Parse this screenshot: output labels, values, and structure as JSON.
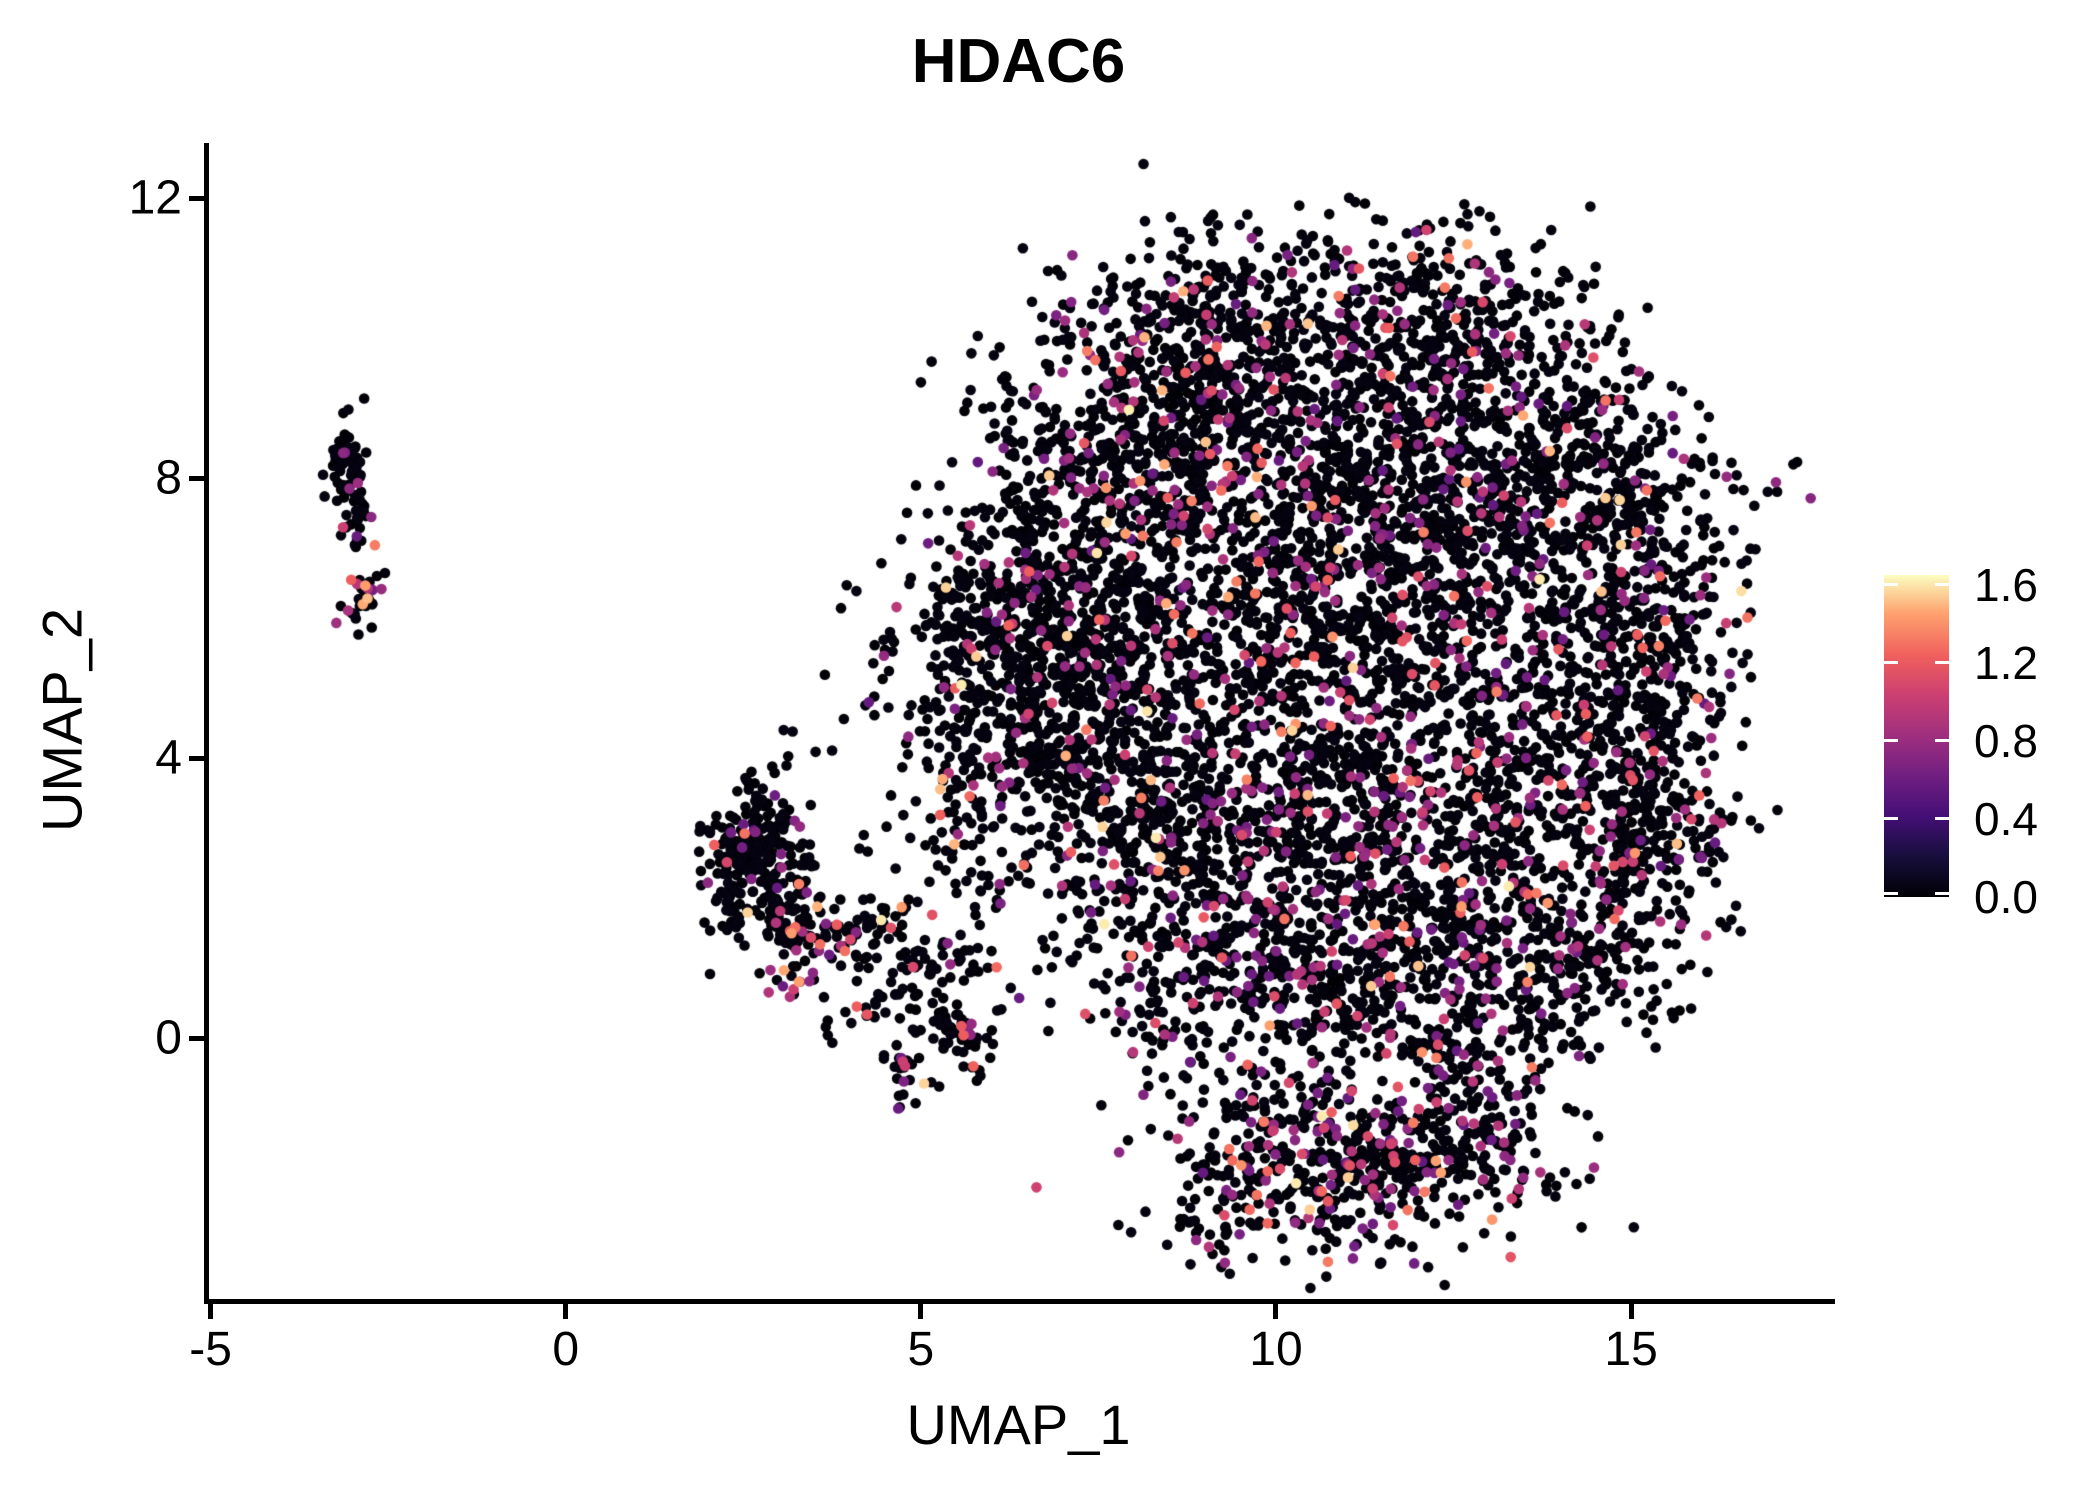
{
  "chart_data": {
    "type": "scatter",
    "title": "HDAC6",
    "xlabel": "UMAP_1",
    "ylabel": "UMAP_2",
    "xlim": [
      -5.05,
      17.8
    ],
    "ylim": [
      -3.77,
      12.79
    ],
    "x_ticks": [
      -5,
      0,
      5,
      10,
      15
    ],
    "x_tick_labels": [
      "-5",
      "0",
      "5",
      "10",
      "15"
    ],
    "y_ticks": [
      12,
      8,
      4,
      0
    ],
    "y_tick_labels": [
      "12",
      "8",
      "4",
      "0"
    ],
    "grid": false,
    "background": "#ffffff",
    "axis_color": "#000000",
    "point_radius_px": 5.3,
    "seed": 7,
    "clump": {
      "prob": 0.35,
      "scale": 0.3
    },
    "expression": {
      "zero_max": 0.05,
      "mid_range": [
        0.55,
        0.95
      ],
      "high_range": [
        1.0,
        1.35
      ],
      "top_range": [
        1.4,
        1.62
      ],
      "mix": {
        "mid": 0.68,
        "high": 0.25,
        "top": 0.07
      }
    },
    "legend": {
      "position": "right",
      "vmin": 0.0,
      "vmax": 1.65,
      "tick_values": [
        1.6,
        1.2,
        0.8,
        0.4,
        0.0
      ],
      "tick_labels": [
        "1.6",
        "1.2",
        "0.8",
        "0.4",
        "0.0"
      ],
      "colormap": "magma",
      "stops": [
        {
          "t": 0.0,
          "c": "#000004"
        },
        {
          "t": 0.13,
          "c": "#180f3e"
        },
        {
          "t": 0.25,
          "c": "#440f76"
        },
        {
          "t": 0.38,
          "c": "#721f81"
        },
        {
          "t": 0.5,
          "c": "#9f2f7f"
        },
        {
          "t": 0.63,
          "c": "#cd4071"
        },
        {
          "t": 0.75,
          "c": "#f0605d"
        },
        {
          "t": 0.88,
          "c": "#fea16e"
        },
        {
          "t": 1.0,
          "c": "#fcfdbf"
        }
      ]
    },
    "clusters": [
      {
        "name": "main-blob",
        "components": [
          [
            9.0,
            10.2,
            1.0,
            0.7,
            260,
            0.1
          ],
          [
            11.4,
            10.5,
            1.2,
            0.65,
            300,
            0.1
          ],
          [
            13.5,
            9.4,
            0.85,
            0.8,
            230,
            0.1
          ],
          [
            7.6,
            8.4,
            0.85,
            0.95,
            330,
            0.12
          ],
          [
            9.6,
            8.7,
            1.0,
            0.95,
            380,
            0.13
          ],
          [
            11.4,
            8.3,
            1.15,
            1.0,
            380,
            0.12
          ],
          [
            13.3,
            8.0,
            1.0,
            1.0,
            330,
            0.12
          ],
          [
            15.0,
            7.5,
            0.8,
            0.9,
            260,
            0.12
          ],
          [
            5.9,
            5.4,
            0.65,
            1.0,
            200,
            0.09
          ],
          [
            6.6,
            6.1,
            0.75,
            1.0,
            380,
            0.1
          ],
          [
            8.6,
            6.2,
            1.0,
            1.15,
            420,
            0.13
          ],
          [
            10.7,
            5.9,
            1.1,
            1.15,
            420,
            0.13
          ],
          [
            12.9,
            6.0,
            1.1,
            1.1,
            400,
            0.13
          ],
          [
            15.1,
            5.2,
            0.75,
            1.1,
            300,
            0.13
          ],
          [
            6.5,
            3.9,
            0.7,
            1.0,
            160,
            0.1
          ],
          [
            7.6,
            3.7,
            0.9,
            1.0,
            330,
            0.12
          ],
          [
            9.7,
            3.3,
            1.05,
            1.05,
            380,
            0.13
          ],
          [
            11.9,
            3.2,
            1.05,
            1.05,
            380,
            0.13
          ],
          [
            13.9,
            3.3,
            0.95,
            0.95,
            330,
            0.12
          ],
          [
            15.4,
            3.0,
            0.6,
            0.8,
            160,
            0.12
          ],
          [
            8.9,
            1.3,
            0.95,
            0.85,
            300,
            0.14
          ],
          [
            10.9,
            0.9,
            1.1,
            0.85,
            340,
            0.15
          ],
          [
            12.9,
            1.0,
            0.95,
            0.8,
            300,
            0.15
          ],
          [
            14.4,
            1.0,
            0.55,
            0.6,
            120,
            0.12
          ],
          [
            9.9,
            -1.7,
            0.85,
            0.75,
            260,
            0.22
          ],
          [
            11.3,
            -2.0,
            0.95,
            0.65,
            260,
            0.22
          ],
          [
            12.6,
            -1.3,
            0.75,
            0.7,
            200,
            0.2
          ],
          [
            5.3,
            2.9,
            1.0,
            1.2,
            60,
            0.08
          ],
          [
            4.7,
            4.7,
            0.7,
            0.7,
            25,
            0.05
          ]
        ]
      },
      {
        "name": "mid-cluster",
        "components": [
          [
            2.65,
            2.85,
            0.35,
            0.4,
            150,
            0.07
          ],
          [
            2.35,
            2.1,
            0.22,
            0.5,
            60,
            0.12
          ],
          [
            3.1,
            2.1,
            0.3,
            0.45,
            80,
            0.1
          ],
          [
            3.3,
            1.25,
            0.3,
            0.4,
            70,
            0.22
          ],
          [
            4.1,
            1.55,
            0.55,
            0.3,
            55,
            0.1
          ],
          [
            5.2,
            1.1,
            0.65,
            0.3,
            45,
            0.06
          ],
          [
            4.6,
            0.45,
            0.45,
            0.28,
            35,
            0.08
          ],
          [
            5.6,
            0.05,
            0.3,
            0.25,
            50,
            0.1
          ],
          [
            4.72,
            -0.5,
            0.15,
            0.2,
            25,
            0.3
          ]
        ]
      },
      {
        "name": "left-small-cluster",
        "components": [
          [
            -3.05,
            8.2,
            0.12,
            0.38,
            60,
            0.04
          ],
          [
            -2.95,
            7.5,
            0.1,
            0.22,
            28,
            0.12
          ],
          [
            -2.85,
            6.4,
            0.11,
            0.22,
            32,
            0.35
          ]
        ]
      }
    ]
  }
}
